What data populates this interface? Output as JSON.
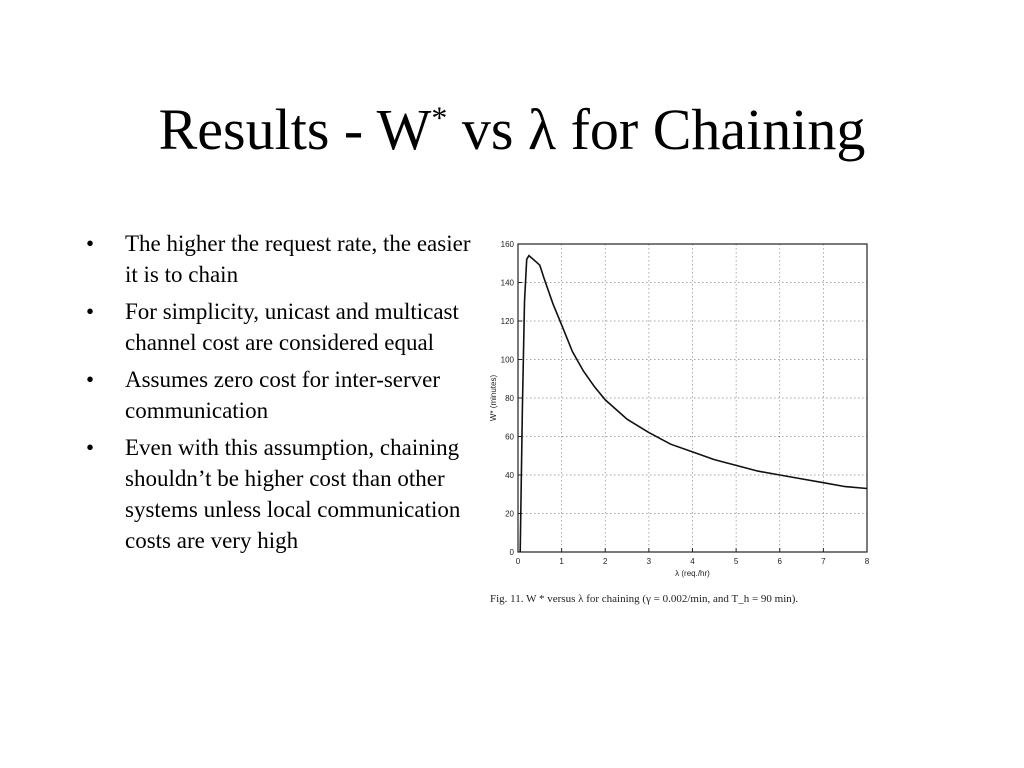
{
  "slide": {
    "title": {
      "prefix": "Results - W",
      "superscript": "*",
      "suffix": " vs λ for Chaining"
    },
    "bullets": [
      "The higher the request rate, the easier it is to chain",
      "For simplicity, unicast and multicast channel cost are considered equal",
      "Assumes zero cost for inter-server communication",
      "Even with this assumption, chaining shouldn’t be higher cost than other systems unless local communication costs are very high"
    ],
    "bullet_symbol": "•"
  },
  "chart_data": {
    "type": "line",
    "xlabel": "λ (req./hr)",
    "ylabel": "W* (minutes)",
    "xlim": [
      0,
      8
    ],
    "ylim": [
      0,
      160
    ],
    "x_ticks": [
      0,
      1,
      2,
      3,
      4,
      5,
      6,
      7,
      8
    ],
    "y_ticks": [
      0,
      20,
      40,
      60,
      80,
      100,
      120,
      140,
      160
    ],
    "grid": true,
    "caption": "Fig. 11.    W * versus λ for chaining (γ = 0.002/min, and T_h = 90 min).",
    "series": [
      {
        "x": [
          0.05,
          0.1,
          0.15,
          0.2,
          0.25,
          0.3,
          0.4,
          0.5,
          0.6,
          0.8,
          1.0,
          1.25,
          1.5,
          1.75,
          2.0,
          2.5,
          3.0,
          3.5,
          4.0,
          4.5,
          5.0,
          5.5,
          6.0,
          6.5,
          7.0,
          7.5,
          8.0
        ],
        "y": [
          0,
          75,
          130,
          152,
          154,
          153,
          151,
          149,
          142,
          129,
          118,
          104,
          94,
          86,
          79,
          69,
          62,
          56,
          52,
          48,
          45,
          42,
          40,
          38,
          36,
          34,
          33
        ]
      }
    ]
  }
}
